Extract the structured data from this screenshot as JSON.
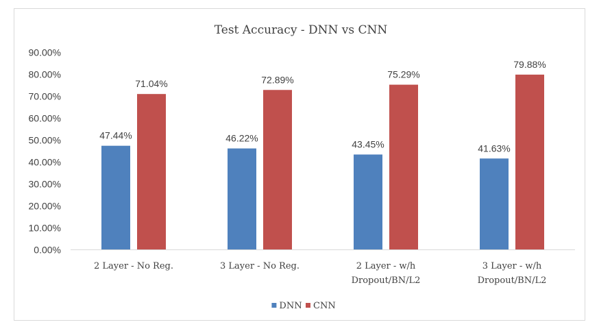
{
  "chart_data": {
    "type": "bar",
    "title": "Test Accuracy - DNN vs CNN",
    "categories": [
      [
        "2 Layer - No Reg."
      ],
      [
        "3 Layer - No Reg."
      ],
      [
        "2 Layer - w/h",
        "Dropout/BN/L2"
      ],
      [
        "3 Layer - w/h",
        "Dropout/BN/L2"
      ]
    ],
    "series": [
      {
        "name": "DNN",
        "color": "#4f81bd",
        "values": [
          47.44,
          46.22,
          43.45,
          41.63
        ],
        "labels": [
          "47.44%",
          "46.22%",
          "43.45%",
          "41.63%"
        ]
      },
      {
        "name": "CNN",
        "color": "#c0504d",
        "values": [
          71.04,
          72.89,
          75.29,
          79.88
        ],
        "labels": [
          "71.04%",
          "72.89%",
          "75.29%",
          "79.88%"
        ]
      }
    ],
    "ylim": [
      0,
      90
    ],
    "yticks": [
      0,
      10,
      20,
      30,
      40,
      50,
      60,
      70,
      80,
      90
    ],
    "ytick_labels": [
      "0.00%",
      "10.00%",
      "20.00%",
      "30.00%",
      "40.00%",
      "50.00%",
      "60.00%",
      "70.00%",
      "80.00%",
      "90.00%"
    ],
    "grid": false,
    "legend": "bottom"
  }
}
